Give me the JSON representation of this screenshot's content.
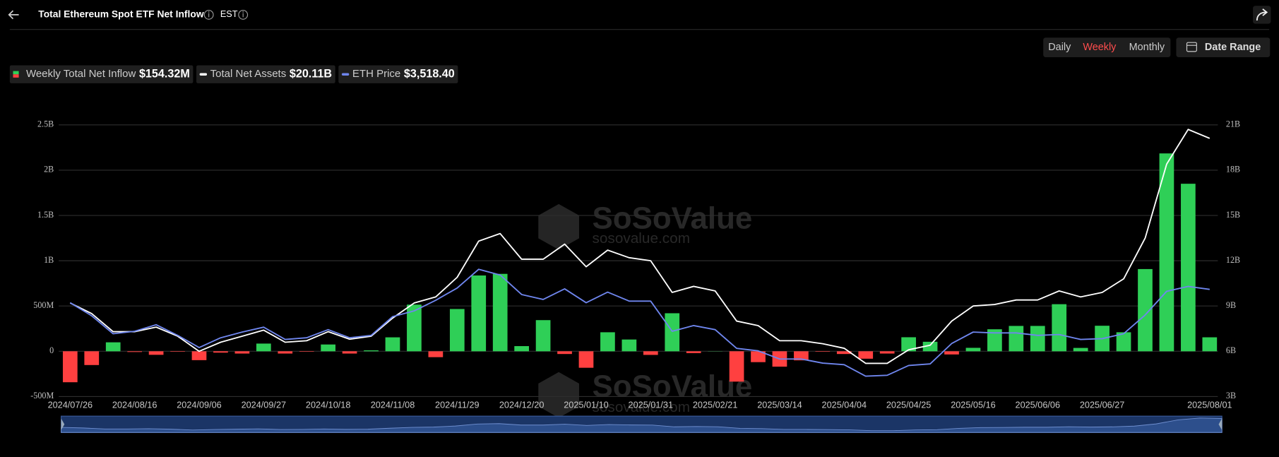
{
  "chart_data": {
    "type": "bar",
    "title": "Total Ethereum Spot ETF Net Inflow",
    "timezone": "EST",
    "categories": [
      "2024/07/26",
      null,
      null,
      "2024/08/16",
      null,
      null,
      "2024/09/06",
      null,
      null,
      "2024/09/27",
      null,
      null,
      "2024/10/18",
      null,
      null,
      "2024/11/08",
      null,
      null,
      "2024/11/29",
      null,
      null,
      "2024/12/20",
      null,
      null,
      "2025/01/10",
      null,
      null,
      "2025/01/31",
      null,
      null,
      "2025/02/21",
      null,
      null,
      "2025/03/14",
      null,
      null,
      "2025/04/04",
      null,
      null,
      "2025/04/25",
      null,
      null,
      "2025/05/16",
      null,
      null,
      "2025/06/06",
      null,
      null,
      "2025/06/27",
      null,
      null,
      null,
      null,
      "2025/08/01"
    ],
    "series": [
      {
        "name": "Weekly Total Net Inflow",
        "type": "bar",
        "color": "#2fcf57",
        "negative_color": "#ff4040",
        "legend_value": "$154.32M",
        "values": [
          -342,
          -152,
          99,
          -8,
          -39,
          -5,
          -98,
          -15,
          -25,
          85,
          -25,
          -5,
          75,
          -25,
          10,
          154,
          515,
          -65,
          467,
          837,
          855,
          57,
          344,
          -30,
          -182,
          210,
          130,
          -40,
          420,
          -20,
          2,
          -335,
          -120,
          -170,
          -100,
          -5,
          -30,
          -82,
          -25,
          155,
          105,
          -35,
          38,
          243,
          280,
          280,
          520,
          37,
          282,
          210,
          908,
          2185,
          1850,
          154.32
        ]
      },
      {
        "name": "Total Net Assets",
        "type": "line",
        "axis": "y2",
        "color": "#ffffff",
        "legend_value": "$20.11B",
        "values": [
          9.2,
          8.5,
          7.3,
          7.3,
          7.6,
          7.0,
          6.0,
          6.6,
          7.0,
          7.4,
          6.6,
          6.7,
          7.3,
          6.8,
          7.0,
          8.2,
          9.2,
          9.6,
          10.9,
          13.3,
          13.8,
          12.1,
          12.1,
          13.1,
          11.6,
          12.7,
          12.2,
          12.0,
          9.9,
          10.3,
          10.0,
          8.0,
          7.7,
          6.7,
          6.7,
          6.5,
          6.2,
          5.2,
          5.2,
          6.1,
          6.4,
          8.0,
          9.0,
          9.1,
          9.4,
          9.4,
          10.0,
          9.6,
          9.9,
          10.8,
          13.5,
          18.4,
          20.7,
          20.11
        ]
      },
      {
        "name": "ETH Price",
        "type": "line",
        "axis": "none",
        "color": "#6f86ee",
        "legend_value": "$3,518.40",
        "values": [
          3254,
          2996,
          2640,
          2689,
          2818,
          2608,
          2366,
          2560,
          2673,
          2770,
          2527,
          2560,
          2721,
          2560,
          2608,
          2979,
          3092,
          3302,
          3545,
          3916,
          3803,
          3416,
          3319,
          3529,
          3254,
          3464,
          3286,
          3286,
          2689,
          2802,
          2721,
          2350,
          2301,
          2140,
          2140,
          2059,
          2027,
          1800,
          1817,
          2011,
          2043,
          2446,
          2673,
          2656,
          2656,
          2608,
          2624,
          2527,
          2543,
          2640,
          3012,
          3480,
          3577,
          3518.4
        ]
      }
    ],
    "ylim": [
      -500,
      2500
    ],
    "yticks": [
      {
        "value": -500,
        "label": "-500M"
      },
      0,
      {
        "value": 500,
        "label": "500M"
      },
      {
        "value": 1000,
        "label": "1B"
      },
      {
        "value": 1500,
        "label": "1.5B"
      },
      {
        "value": 2000,
        "label": "2B"
      },
      {
        "value": 2500,
        "label": "2.5B"
      }
    ],
    "y2lim": [
      3,
      21
    ],
    "y2ticks": [
      {
        "value": 3,
        "label": "3B"
      },
      {
        "value": 6,
        "label": "6B"
      },
      {
        "value": 9,
        "label": "9B"
      },
      {
        "value": 12,
        "label": "12B"
      },
      {
        "value": 15,
        "label": "15B"
      },
      {
        "value": 18,
        "label": "18B"
      },
      {
        "value": 21,
        "label": "21B"
      }
    ],
    "grid": true
  },
  "controls": {
    "periods": [
      "Daily",
      "Weekly",
      "Monthly"
    ],
    "date_range": "Date Range"
  },
  "watermark": {
    "brand": "SoSoValue",
    "site": "sosovalue.com"
  }
}
